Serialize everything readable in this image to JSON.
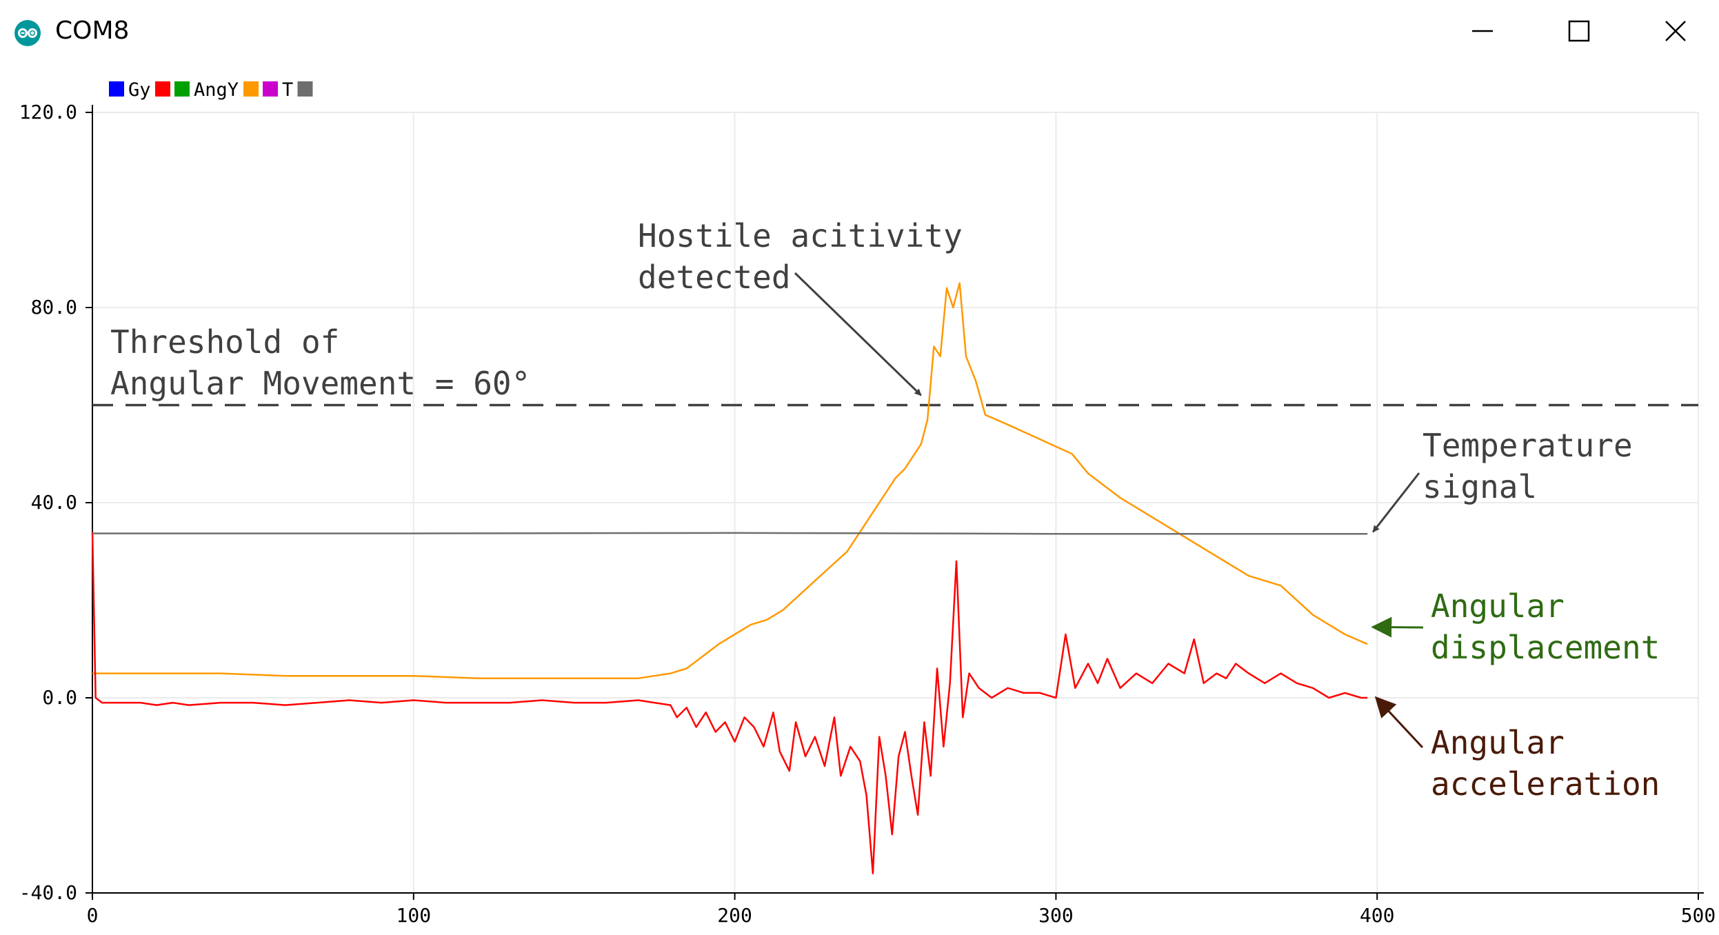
{
  "window": {
    "title": "COM8",
    "app_icon": "arduino-icon",
    "minimize_icon": "minimize-icon",
    "maximize_icon": "maximize-icon",
    "close_icon": "close-icon"
  },
  "legend": [
    {
      "name": "Gy",
      "color": "#0000ff"
    },
    {
      "name": "",
      "color": "#ff0000"
    },
    {
      "name": "AngY",
      "color": "#00a000"
    },
    {
      "name": "",
      "color": "#ff9900"
    },
    {
      "name": "T",
      "color": "#cc00cc"
    },
    {
      "name": "",
      "color": "#6e6e6e"
    }
  ],
  "chart_data": {
    "type": "line",
    "xlim": [
      0,
      500
    ],
    "ylim": [
      -40,
      120
    ],
    "x_ticks": [
      "0",
      "100",
      "200",
      "300",
      "400",
      "500"
    ],
    "y_ticks": [
      "120.0",
      "80.0",
      "40.0",
      "0.0",
      "-40.0"
    ],
    "grid": true,
    "legend_position": "top-left",
    "threshold": {
      "value": 60,
      "label_line1": "Threshold of",
      "label_line2": "Angular Movement = 60°"
    },
    "series": [
      {
        "color": "#ff9900",
        "points": [
          [
            0,
            5
          ],
          [
            20,
            5
          ],
          [
            40,
            5
          ],
          [
            60,
            4.5
          ],
          [
            80,
            4.5
          ],
          [
            100,
            4.5
          ],
          [
            120,
            4
          ],
          [
            140,
            4
          ],
          [
            160,
            4
          ],
          [
            170,
            4
          ],
          [
            180,
            5
          ],
          [
            185,
            6
          ],
          [
            190,
            8.5
          ],
          [
            195,
            11
          ],
          [
            200,
            13
          ],
          [
            205,
            15
          ],
          [
            210,
            16
          ],
          [
            215,
            18
          ],
          [
            220,
            21
          ],
          [
            225,
            24
          ],
          [
            230,
            27
          ],
          [
            235,
            30
          ],
          [
            240,
            35
          ],
          [
            245,
            40
          ],
          [
            250,
            45
          ],
          [
            253,
            47
          ],
          [
            256,
            50
          ],
          [
            258,
            52
          ],
          [
            260,
            57
          ],
          [
            262,
            72
          ],
          [
            264,
            70
          ],
          [
            266,
            84
          ],
          [
            268,
            80
          ],
          [
            270,
            85
          ],
          [
            272,
            70
          ],
          [
            275,
            65
          ],
          [
            278,
            58
          ],
          [
            285,
            56
          ],
          [
            295,
            53
          ],
          [
            305,
            50
          ],
          [
            310,
            46
          ],
          [
            320,
            41
          ],
          [
            330,
            37
          ],
          [
            340,
            33
          ],
          [
            350,
            29
          ],
          [
            360,
            25
          ],
          [
            370,
            23
          ],
          [
            380,
            17
          ],
          [
            390,
            13
          ],
          [
            397,
            11
          ]
        ]
      },
      {
        "color": "#ff0000",
        "points": [
          [
            0,
            34
          ],
          [
            1,
            0
          ],
          [
            3,
            -1
          ],
          [
            10,
            -1
          ],
          [
            15,
            -1
          ],
          [
            20,
            -1.5
          ],
          [
            25,
            -1
          ],
          [
            30,
            -1.5
          ],
          [
            40,
            -1
          ],
          [
            50,
            -1
          ],
          [
            60,
            -1.5
          ],
          [
            70,
            -1
          ],
          [
            80,
            -0.5
          ],
          [
            90,
            -1
          ],
          [
            100,
            -0.5
          ],
          [
            110,
            -1
          ],
          [
            120,
            -1
          ],
          [
            130,
            -1
          ],
          [
            140,
            -0.5
          ],
          [
            150,
            -1
          ],
          [
            160,
            -1
          ],
          [
            170,
            -0.5
          ],
          [
            175,
            -1
          ],
          [
            180,
            -1.5
          ],
          [
            182,
            -4
          ],
          [
            185,
            -2
          ],
          [
            188,
            -6
          ],
          [
            191,
            -3
          ],
          [
            194,
            -7
          ],
          [
            197,
            -5
          ],
          [
            200,
            -9
          ],
          [
            203,
            -4
          ],
          [
            206,
            -6
          ],
          [
            209,
            -10
          ],
          [
            212,
            -3
          ],
          [
            214,
            -11
          ],
          [
            217,
            -15
          ],
          [
            219,
            -5
          ],
          [
            222,
            -12
          ],
          [
            225,
            -8
          ],
          [
            228,
            -14
          ],
          [
            231,
            -4
          ],
          [
            233,
            -16
          ],
          [
            236,
            -10
          ],
          [
            239,
            -13
          ],
          [
            241,
            -20
          ],
          [
            243,
            -36
          ],
          [
            245,
            -8
          ],
          [
            247,
            -16
          ],
          [
            249,
            -28
          ],
          [
            251,
            -12
          ],
          [
            253,
            -7
          ],
          [
            255,
            -16
          ],
          [
            257,
            -24
          ],
          [
            259,
            -5
          ],
          [
            261,
            -16
          ],
          [
            263,
            6
          ],
          [
            265,
            -10
          ],
          [
            267,
            3
          ],
          [
            269,
            28
          ],
          [
            271,
            -4
          ],
          [
            273,
            5
          ],
          [
            276,
            2
          ],
          [
            280,
            0
          ],
          [
            285,
            2
          ],
          [
            290,
            1
          ],
          [
            295,
            1
          ],
          [
            300,
            0
          ],
          [
            303,
            13
          ],
          [
            306,
            2
          ],
          [
            310,
            7
          ],
          [
            313,
            3
          ],
          [
            316,
            8
          ],
          [
            320,
            2
          ],
          [
            325,
            5
          ],
          [
            330,
            3
          ],
          [
            335,
            7
          ],
          [
            340,
            5
          ],
          [
            343,
            12
          ],
          [
            346,
            3
          ],
          [
            350,
            5
          ],
          [
            353,
            4
          ],
          [
            356,
            7
          ],
          [
            360,
            5
          ],
          [
            365,
            3
          ],
          [
            370,
            5
          ],
          [
            375,
            3
          ],
          [
            380,
            2
          ],
          [
            385,
            0
          ],
          [
            390,
            1
          ],
          [
            395,
            0
          ],
          [
            397,
            0
          ]
        ]
      },
      {
        "color": "#6e6e6e",
        "points": [
          [
            0,
            33.7
          ],
          [
            100,
            33.7
          ],
          [
            200,
            33.8
          ],
          [
            260,
            33.7
          ],
          [
            300,
            33.6
          ],
          [
            350,
            33.6
          ],
          [
            397,
            33.6
          ]
        ]
      }
    ],
    "annotations": [
      {
        "line1": "Hostile acitivity",
        "line2": "detected",
        "color": "#404040",
        "target": [
          258,
          62
        ]
      },
      {
        "line1": "Temperature",
        "line2": "signal",
        "color": "#404040",
        "target": [
          397,
          34
        ]
      },
      {
        "line1": "Angular",
        "line2": "displacement",
        "color": "#2e6b12",
        "target": [
          397,
          14.5
        ]
      },
      {
        "line1": "Angular",
        "line2": "acceleration",
        "color": "#4a1a08",
        "target": [
          398,
          0
        ]
      }
    ]
  }
}
